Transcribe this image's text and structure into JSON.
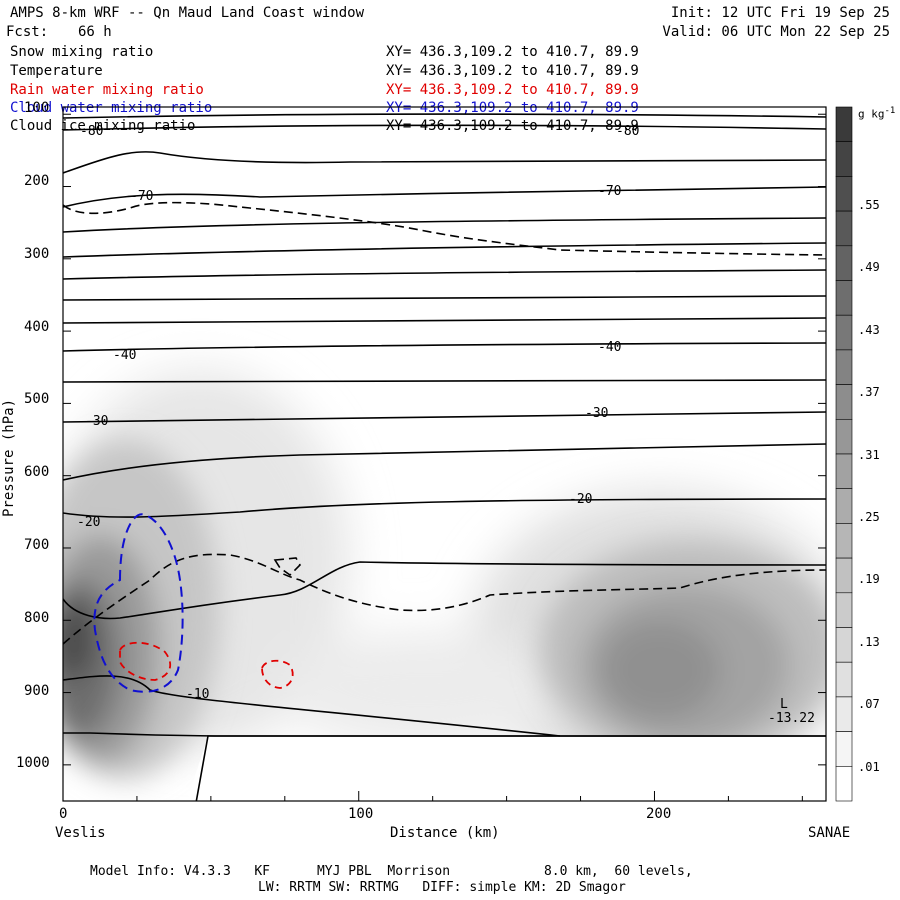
{
  "header": {
    "title": "AMPS 8-km WRF -- Qn Maud Land Coast window",
    "init": "Init: 12 UTC Fri 19 Sep 25",
    "fcst_label": "Fcst:",
    "fcst_value": "66 h",
    "valid": "Valid: 06 UTC Mon 22 Sep 25"
  },
  "fields": [
    {
      "name": "Snow mixing ratio",
      "xy": "XY= 436.3,109.2 to 410.7, 89.9",
      "color": "#000000"
    },
    {
      "name": "Temperature",
      "xy": "XY= 436.3,109.2 to 410.7, 89.9",
      "color": "#000000"
    },
    {
      "name": "Rain water mixing ratio",
      "xy": "XY= 436.3,109.2 to 410.7, 89.9",
      "color": "#e00000"
    },
    {
      "name": "Cloud water mixing ratio",
      "xy": "XY= 436.3,109.2 to 410.7, 89.9",
      "color": "#1010d0"
    },
    {
      "name": "Cloud ice mixing ratio",
      "xy": "XY= 436.3,109.2 to 410.7, 89.9",
      "color": "#000000"
    }
  ],
  "chart_data": {
    "type": "heatmap",
    "title": "AMPS 8-km WRF -- Qn Maud Land Coast window",
    "xlabel": "Distance (km)",
    "ylabel": "Pressure (hPa)",
    "x_ticks": [
      0,
      100,
      200
    ],
    "x_tick_labels": [
      "0",
      "100",
      "200"
    ],
    "xlim": [
      0,
      258
    ],
    "y_ticks": [
      100,
      200,
      300,
      400,
      500,
      600,
      700,
      800,
      900,
      1000
    ],
    "y_tick_labels": [
      "100",
      "200",
      "300",
      "400",
      "500",
      "600",
      "700",
      "800",
      "900",
      "1000"
    ],
    "ylim": [
      1050,
      90
    ],
    "endpoint_left": "Veslis",
    "endpoint_right": "SANAE",
    "colorbar": {
      "units": "g kg",
      "units_exp": "-1",
      "labels": [
        ".55",
        ".49",
        ".43",
        ".37",
        ".31",
        ".25",
        ".19",
        ".13",
        ".07",
        ".01"
      ],
      "levels": [
        0.01,
        0.04,
        0.07,
        0.1,
        0.13,
        0.16,
        0.19,
        0.22,
        0.25,
        0.28,
        0.31,
        0.34,
        0.37,
        0.4,
        0.43,
        0.46,
        0.49,
        0.52,
        0.55,
        0.58
      ]
    },
    "snow_maxima": [
      {
        "x": 5,
        "p": 830,
        "value": 0.55
      },
      {
        "x": 20,
        "p": 740,
        "value": 0.46
      },
      {
        "x": 210,
        "p": 860,
        "value": 0.34
      }
    ],
    "temperature_labels": [
      {
        "text": "-80",
        "x": 8,
        "p": 132
      },
      {
        "text": "-80",
        "x": 190,
        "p": 132
      },
      {
        "text": "-70",
        "x": 27,
        "p": 218
      },
      {
        "text": "-70",
        "x": 184,
        "p": 208
      },
      {
        "text": "-40",
        "x": 20,
        "p": 440
      },
      {
        "text": "-40",
        "x": 185,
        "p": 433
      },
      {
        "text": "-30",
        "x": 11,
        "p": 555
      },
      {
        "text": "-30",
        "x": 179,
        "p": 542
      },
      {
        "text": "-20",
        "x": 8,
        "p": 673
      },
      {
        "text": "-20",
        "x": 175,
        "p": 640
      },
      {
        "text": "-10",
        "x": 46,
        "p": 907
      }
    ],
    "low": {
      "label": "L",
      "value": "-13.22",
      "x": 245,
      "p": 905
    }
  },
  "footer": {
    "line1": "Model Info: V4.3.3   KF      MYJ PBL  Morrison            8.0 km,  60 levels,",
    "line2": "LW: RRTM SW: RRTMG   DIFF: simple KM: 2D Smagor"
  }
}
